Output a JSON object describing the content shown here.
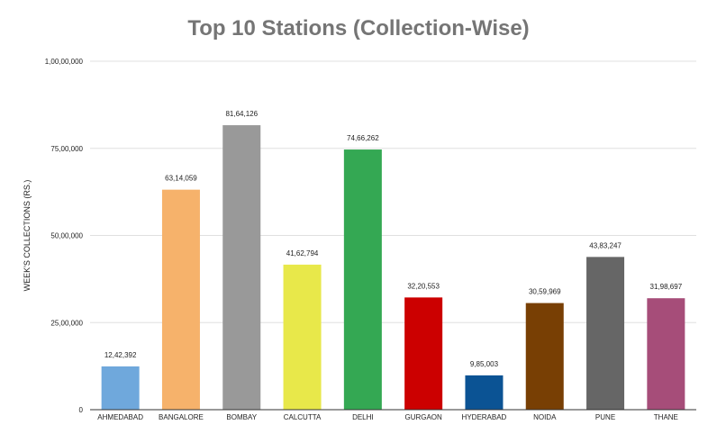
{
  "chart_data": {
    "type": "bar",
    "title": "Top 10 Stations (Collection-Wise)",
    "xlabel": "",
    "ylabel": "WEEK'S COLLECTIONS (RS.)",
    "ylim": [
      0,
      10000000
    ],
    "yticks": [
      {
        "value": 0,
        "label": "0"
      },
      {
        "value": 2500000,
        "label": "25,00,000"
      },
      {
        "value": 5000000,
        "label": "50,00,000"
      },
      {
        "value": 7500000,
        "label": "75,00,000"
      },
      {
        "value": 10000000,
        "label": "1,00,00,000"
      }
    ],
    "grid": true,
    "categories": [
      "AHMEDABAD",
      "BANGALORE",
      "BOMBAY",
      "CALCUTTA",
      "DELHI",
      "GURGAON",
      "HYDERABAD",
      "NOIDA",
      "PUNE",
      "THANE"
    ],
    "values": [
      1242392,
      6314059,
      8164126,
      4162794,
      7466262,
      3220553,
      985003,
      3059969,
      4383247,
      3198697
    ],
    "data_labels": [
      "12,42,392",
      "63,14,059",
      "81,64,126",
      "41,62,794",
      "74,66,262",
      "32,20,553",
      "9,85,003",
      "30,59,969",
      "43,83,247",
      "31,98,697"
    ],
    "colors": [
      "#6fa8dc",
      "#f6b26b",
      "#999999",
      "#e8e84a",
      "#34a853",
      "#cc0000",
      "#0b5394",
      "#783f04",
      "#666666",
      "#a64d79"
    ]
  }
}
